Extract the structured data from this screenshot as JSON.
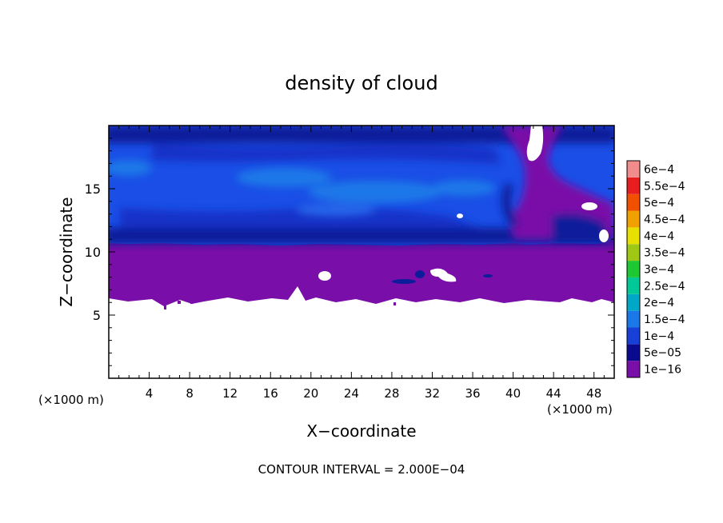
{
  "chart_data": {
    "type": "heatmap",
    "title": "density of cloud",
    "xlabel": "X−coordinate",
    "ylabel": "Z−coordinate",
    "x_unit": "(×1000 m)",
    "x_unit_right": "(×1000 m)",
    "xlim": [
      0,
      50
    ],
    "ylim": [
      0,
      20
    ],
    "x_ticks": [
      4,
      8,
      12,
      16,
      20,
      24,
      28,
      32,
      36,
      40,
      44,
      48
    ],
    "y_ticks": [
      5,
      10,
      15
    ],
    "footer": "CONTOUR INTERVAL = 2.000E−04",
    "legend_position": "right",
    "colorbar": {
      "levels": [
        "1e−16",
        "5e−05",
        "1e−4",
        "1.5e−4",
        "2e−4",
        "2.5e−4",
        "3e−4",
        "3.5e−4",
        "4e−4",
        "4.5e−4",
        "5e−4",
        "5.5e−4",
        "6e−4"
      ],
      "colors": [
        "#7a0ea8",
        "#0a0a8e",
        "#1640d8",
        "#1a78e8",
        "#00a8c8",
        "#00c896",
        "#1ec832",
        "#9ec814",
        "#e8e000",
        "#f0a000",
        "#f05000",
        "#e81e1e",
        "#f08c8c"
      ]
    },
    "regions": [
      {
        "name": "no-cloud",
        "z_range": [
          0,
          6.4
        ],
        "color": "#ffffff"
      },
      {
        "name": "lower-layer",
        "z_range": [
          6.4,
          10.4
        ],
        "color": "#7a0ea8"
      },
      {
        "name": "upper-layer",
        "z_range": [
          10.4,
          19.8
        ],
        "color": "#1a4ee6"
      }
    ]
  }
}
